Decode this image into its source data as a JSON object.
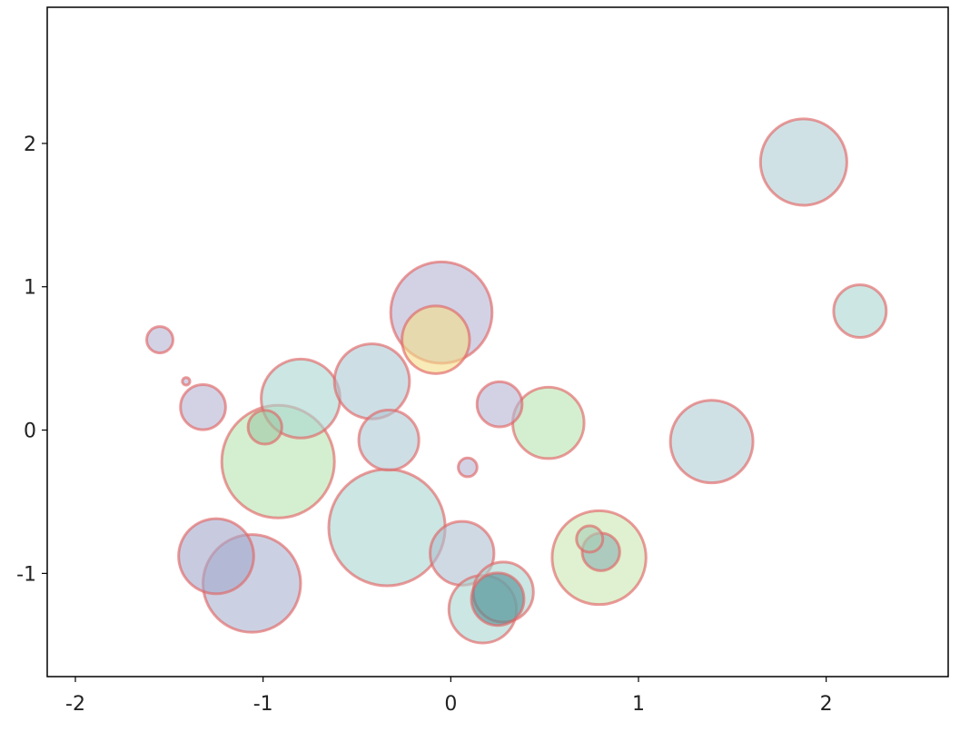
{
  "chart_data": {
    "type": "scatter",
    "title": "",
    "xlabel": "",
    "ylabel": "",
    "xlim": [
      -2.15,
      2.65
    ],
    "ylim": [
      -1.72,
      2.95
    ],
    "grid": false,
    "x_ticks": [
      -2,
      -1,
      0,
      1,
      2
    ],
    "x_tick_labels": [
      "-2",
      "-1",
      "0",
      "1",
      "2"
    ],
    "y_ticks": [
      -1,
      0,
      1,
      2
    ],
    "y_tick_labels": [
      "-1",
      "0",
      "1",
      "2"
    ],
    "marker_edge_color": "#e06666",
    "points": [
      {
        "x": -0.92,
        "y": -0.22,
        "r": 0.3,
        "color": "#b7e4b0"
      },
      {
        "x": -0.34,
        "y": -0.68,
        "r": 0.31,
        "color": "#a9d6d0"
      },
      {
        "x": -0.05,
        "y": 0.82,
        "r": 0.27,
        "color": "#b6b4d4"
      },
      {
        "x": -1.06,
        "y": -1.07,
        "r": 0.26,
        "color": "#a8b3cf"
      },
      {
        "x": 0.79,
        "y": -0.89,
        "r": 0.25,
        "color": "#c9e7b0"
      },
      {
        "x": 1.88,
        "y": 1.87,
        "r": 0.23,
        "color": "#b0cdd3"
      },
      {
        "x": 1.39,
        "y": -0.08,
        "r": 0.22,
        "color": "#b0cdd3"
      },
      {
        "x": -0.8,
        "y": 0.22,
        "r": 0.21,
        "color": "#a9d6d0"
      },
      {
        "x": -0.42,
        "y": 0.34,
        "r": 0.2,
        "color": "#adc8d3"
      },
      {
        "x": -1.25,
        "y": -0.88,
        "r": 0.2,
        "color": "#a4a8cb"
      },
      {
        "x": 0.06,
        "y": -0.86,
        "r": 0.17,
        "color": "#aebfd0"
      },
      {
        "x": 0.17,
        "y": -1.25,
        "r": 0.18,
        "color": "#a9d6d0"
      },
      {
        "x": -0.08,
        "y": 0.63,
        "r": 0.18,
        "color": "#f3dd87"
      },
      {
        "x": 0.52,
        "y": 0.05,
        "r": 0.19,
        "color": "#b7e4b0"
      },
      {
        "x": -0.33,
        "y": -0.07,
        "r": 0.16,
        "color": "#adc8d3"
      },
      {
        "x": 0.28,
        "y": -1.13,
        "r": 0.16,
        "color": "#a9d6d0"
      },
      {
        "x": 0.25,
        "y": -1.18,
        "r": 0.14,
        "color": "#4f8e94"
      },
      {
        "x": 2.18,
        "y": 0.83,
        "r": 0.14,
        "color": "#a9d6d0"
      },
      {
        "x": 0.26,
        "y": 0.18,
        "r": 0.12,
        "color": "#b6b4d4"
      },
      {
        "x": -1.32,
        "y": 0.16,
        "r": 0.12,
        "color": "#b6b4d4"
      },
      {
        "x": 0.8,
        "y": -0.85,
        "r": 0.1,
        "color": "#8bb0b3"
      },
      {
        "x": -0.99,
        "y": 0.02,
        "r": 0.09,
        "color": "#9ec7a3"
      },
      {
        "x": 0.74,
        "y": -0.76,
        "r": 0.07,
        "color": "#a9cfb6"
      },
      {
        "x": -1.55,
        "y": 0.63,
        "r": 0.07,
        "color": "#b6b4d4"
      },
      {
        "x": 0.09,
        "y": -0.26,
        "r": 0.05,
        "color": "#b6b4d4"
      },
      {
        "x": -1.41,
        "y": 0.34,
        "r": 0.02,
        "color": "#b6b4d4"
      }
    ]
  }
}
